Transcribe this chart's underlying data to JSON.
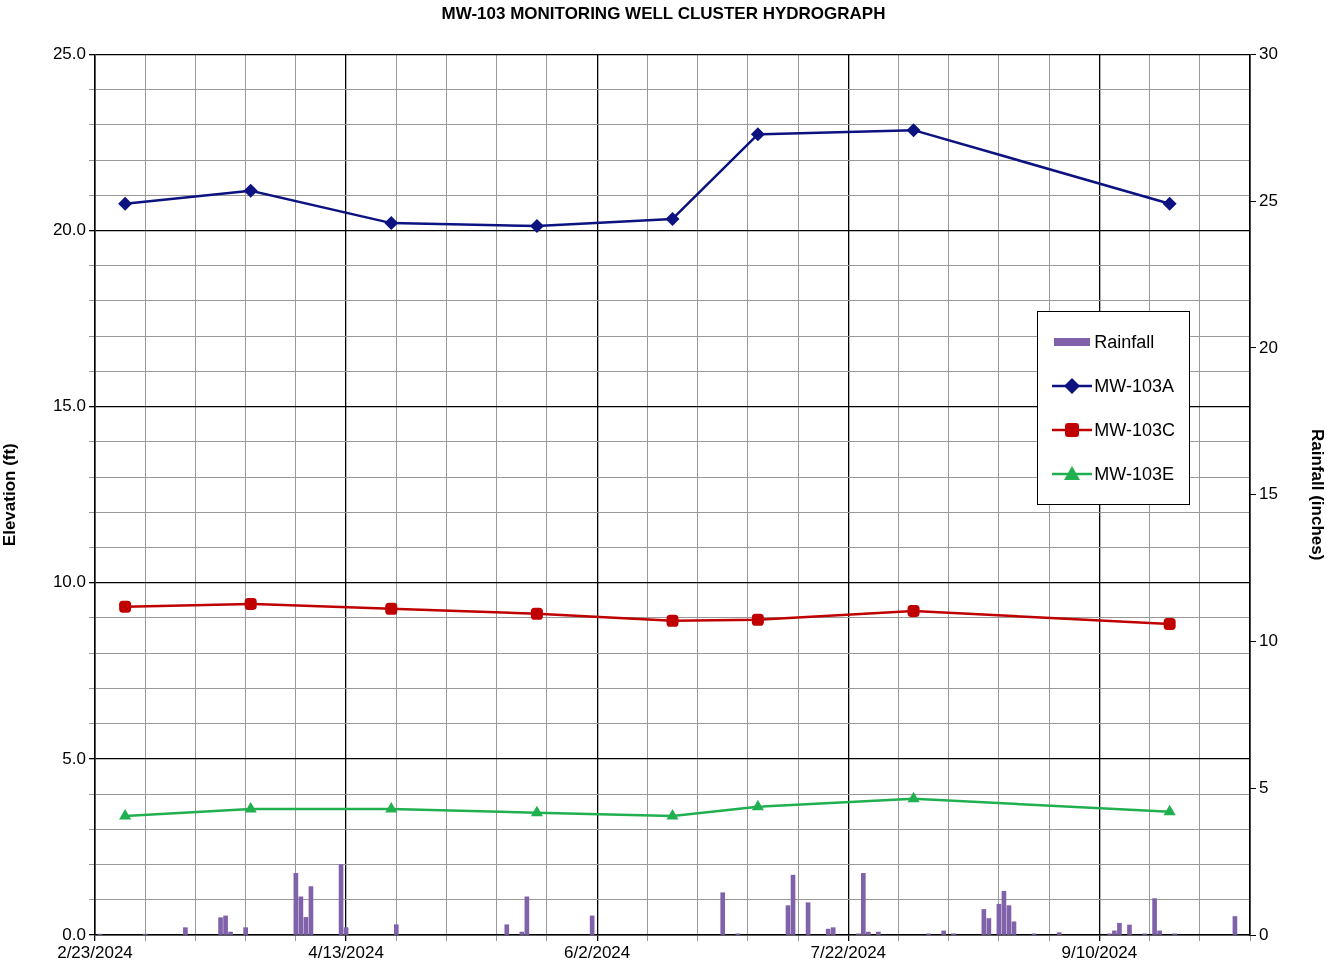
{
  "chart_data": {
    "type": "line",
    "title": "MW-103 MONITORING WELL CLUSTER HYDROGRAPH",
    "ylabel": "Elevation (ft)",
    "y2label": "Rainfall (inches)",
    "xlim": [
      "2024-02-23",
      "2024-10-10"
    ],
    "xticks": [
      {
        "value": "2024-02-23",
        "label": "2/23/2024"
      },
      {
        "value": "2024-03-04",
        "label": null
      },
      {
        "value": "2024-03-14",
        "label": null
      },
      {
        "value": "2024-03-24",
        "label": null
      },
      {
        "value": "2024-04-03",
        "label": null
      },
      {
        "value": "2024-04-13",
        "label": "4/13/2024"
      },
      {
        "value": "2024-04-23",
        "label": null
      },
      {
        "value": "2024-05-03",
        "label": null
      },
      {
        "value": "2024-05-13",
        "label": null
      },
      {
        "value": "2024-05-23",
        "label": null
      },
      {
        "value": "2024-06-02",
        "label": "6/2/2024"
      },
      {
        "value": "2024-06-12",
        "label": null
      },
      {
        "value": "2024-06-22",
        "label": null
      },
      {
        "value": "2024-07-02",
        "label": null
      },
      {
        "value": "2024-07-12",
        "label": null
      },
      {
        "value": "2024-07-22",
        "label": "7/22/2024"
      },
      {
        "value": "2024-08-01",
        "label": null
      },
      {
        "value": "2024-08-11",
        "label": null
      },
      {
        "value": "2024-08-21",
        "label": null
      },
      {
        "value": "2024-08-31",
        "label": null
      },
      {
        "value": "2024-09-10",
        "label": "9/10/2024"
      },
      {
        "value": "2024-09-20",
        "label": null
      },
      {
        "value": "2024-09-30",
        "label": null
      },
      {
        "value": "2024-10-10",
        "label": null
      }
    ],
    "ylim": [
      0,
      25
    ],
    "yticks": [
      {
        "value": 0,
        "label": "0.0"
      },
      {
        "value": 1,
        "label": null
      },
      {
        "value": 2,
        "label": null
      },
      {
        "value": 3,
        "label": null
      },
      {
        "value": 4,
        "label": null
      },
      {
        "value": 5,
        "label": "5.0"
      },
      {
        "value": 6,
        "label": null
      },
      {
        "value": 7,
        "label": null
      },
      {
        "value": 8,
        "label": null
      },
      {
        "value": 9,
        "label": null
      },
      {
        "value": 10,
        "label": "10.0"
      },
      {
        "value": 11,
        "label": null
      },
      {
        "value": 12,
        "label": null
      },
      {
        "value": 13,
        "label": null
      },
      {
        "value": 14,
        "label": null
      },
      {
        "value": 15,
        "label": "15.0"
      },
      {
        "value": 16,
        "label": null
      },
      {
        "value": 17,
        "label": null
      },
      {
        "value": 18,
        "label": null
      },
      {
        "value": 19,
        "label": null
      },
      {
        "value": 20,
        "label": "20.0"
      },
      {
        "value": 21,
        "label": null
      },
      {
        "value": 22,
        "label": null
      },
      {
        "value": 23,
        "label": null
      },
      {
        "value": 24,
        "label": null
      },
      {
        "value": 25,
        "label": "25.0"
      }
    ],
    "y2lim": [
      0,
      30
    ],
    "y2ticks": [
      0,
      5,
      10,
      15,
      20,
      25,
      30
    ],
    "grid": true,
    "legend": "right",
    "series": [
      {
        "name": "Rainfall",
        "type": "bar",
        "axis": "y2",
        "color": "#7f62aa",
        "x": [
          "2024-02-24",
          "2024-03-04",
          "2024-03-12",
          "2024-03-19",
          "2024-03-20",
          "2024-03-21",
          "2024-03-24",
          "2024-04-03",
          "2024-04-04",
          "2024-04-05",
          "2024-04-06",
          "2024-04-12",
          "2024-04-13",
          "2024-04-23",
          "2024-05-15",
          "2024-05-18",
          "2024-05-19",
          "2024-06-01",
          "2024-06-27",
          "2024-06-30",
          "2024-07-10",
          "2024-07-11",
          "2024-07-14",
          "2024-07-18",
          "2024-07-19",
          "2024-07-24",
          "2024-07-25",
          "2024-07-26",
          "2024-07-28",
          "2024-08-07",
          "2024-08-10",
          "2024-08-12",
          "2024-08-18",
          "2024-08-19",
          "2024-08-21",
          "2024-08-22",
          "2024-08-23",
          "2024-08-24",
          "2024-08-28",
          "2024-09-02",
          "2024-09-12",
          "2024-09-13",
          "2024-09-14",
          "2024-09-16",
          "2024-09-19",
          "2024-09-21",
          "2024-09-22",
          "2024-09-25",
          "2024-10-07"
        ],
        "values": [
          0.03,
          0.03,
          0.25,
          0.59,
          0.65,
          0.1,
          0.25,
          2.1,
          1.3,
          0.6,
          1.65,
          2.4,
          0.25,
          0.35,
          0.35,
          0.1,
          1.3,
          0.65,
          1.44,
          0.04,
          1.0,
          2.04,
          1.1,
          0.2,
          0.25,
          0.04,
          2.1,
          0.1,
          0.1,
          0.04,
          0.14,
          0.04,
          0.87,
          0.56,
          1.05,
          1.49,
          1.0,
          0.45,
          0.04,
          0.08,
          0.04,
          0.14,
          0.4,
          0.34,
          0.04,
          1.24,
          0.14,
          0.04,
          0.63
        ]
      },
      {
        "name": "MW-103A",
        "marker": "diamond",
        "color": "#0c1280",
        "x": [
          "2024-02-29",
          "2024-03-25",
          "2024-04-22",
          "2024-05-21",
          "2024-06-17",
          "2024-07-04",
          "2024-08-04",
          "2024-09-24"
        ],
        "values": [
          20.76,
          21.13,
          20.21,
          20.13,
          20.33,
          22.73,
          22.85,
          20.76
        ]
      },
      {
        "name": "MW-103C",
        "marker": "square",
        "color": "#c00000",
        "x": [
          "2024-02-29",
          "2024-03-25",
          "2024-04-22",
          "2024-05-21",
          "2024-06-17",
          "2024-07-04",
          "2024-08-04",
          "2024-09-24"
        ],
        "values": [
          9.32,
          9.4,
          9.26,
          9.12,
          8.92,
          8.95,
          9.2,
          8.83
        ]
      },
      {
        "name": "MW-103E",
        "marker": "triangle",
        "color": "#20b050",
        "x": [
          "2024-02-29",
          "2024-03-25",
          "2024-04-22",
          "2024-05-21",
          "2024-06-17",
          "2024-07-04",
          "2024-08-04",
          "2024-09-24"
        ],
        "values": [
          3.38,
          3.58,
          3.58,
          3.47,
          3.38,
          3.64,
          3.87,
          3.5
        ]
      }
    ]
  }
}
